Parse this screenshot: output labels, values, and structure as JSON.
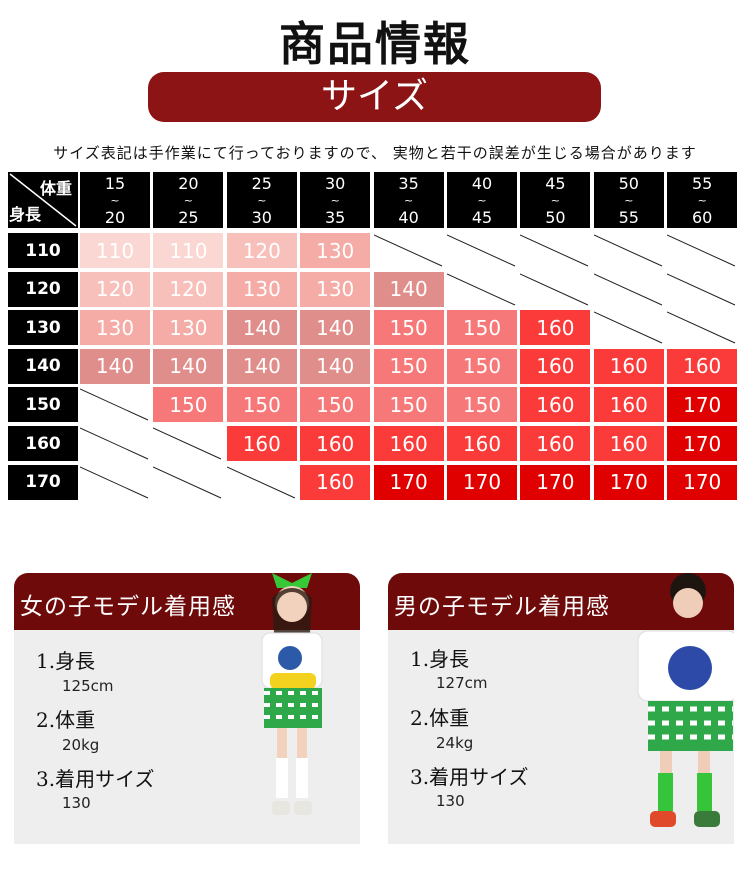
{
  "header": {
    "title": "商品情報",
    "section": "サイズ",
    "note": "サイズ表記は手作業にて行っておりますので、 実物と若干の誤差が生じる場合があります"
  },
  "table": {
    "corner_weight": "体重",
    "corner_height": "身長",
    "columns": [
      [
        "15",
        "~",
        "20"
      ],
      [
        "20",
        "~",
        "25"
      ],
      [
        "25",
        "~",
        "30"
      ],
      [
        "30",
        "~",
        "35"
      ],
      [
        "35",
        "~",
        "40"
      ],
      [
        "40",
        "~",
        "45"
      ],
      [
        "45",
        "~",
        "50"
      ],
      [
        "50",
        "~",
        "55"
      ],
      [
        "55",
        "~",
        "60"
      ]
    ],
    "rows": [
      {
        "label": "110",
        "cells": [
          "110",
          "110",
          "120",
          "130",
          null,
          null,
          null,
          null,
          null
        ]
      },
      {
        "label": "120",
        "cells": [
          "120",
          "120",
          "130",
          "130",
          "140",
          null,
          null,
          null,
          null
        ]
      },
      {
        "label": "130",
        "cells": [
          "130",
          "130",
          "140",
          "140",
          "150",
          "150",
          "160",
          null,
          null
        ]
      },
      {
        "label": "140",
        "cells": [
          "140",
          "140",
          "140",
          "140",
          "150",
          "150",
          "160",
          "160",
          "160"
        ]
      },
      {
        "label": "150",
        "cells": [
          null,
          "150",
          "150",
          "150",
          "150",
          "150",
          "160",
          "160",
          "170"
        ]
      },
      {
        "label": "160",
        "cells": [
          null,
          null,
          "160",
          "160",
          "160",
          "160",
          "160",
          "160",
          "170"
        ]
      },
      {
        "label": "170",
        "cells": [
          null,
          null,
          null,
          "160",
          "170",
          "170",
          "170",
          "170",
          "170"
        ]
      }
    ],
    "colors": {
      "110": "#fbd7d3",
      "120": "#f8c0bb",
      "130": "#f5aba6",
      "140": "#e08e8b",
      "150": "#f77878",
      "160": "#fb3a3a",
      "170": "#e00000"
    }
  },
  "models": [
    {
      "title": "女の子モデル着用感",
      "h_label": "1.身長",
      "h_val": "125cm",
      "w_label": "2.体重",
      "w_val": "20kg",
      "s_label": "3.着用サイズ",
      "s_val": "130"
    },
    {
      "title": "男の子モデル着用感",
      "h_label": "1.身長",
      "h_val": "127cm",
      "w_label": "2.体重",
      "w_val": "24kg",
      "s_label": "3.着用サイズ",
      "s_val": "130"
    }
  ]
}
